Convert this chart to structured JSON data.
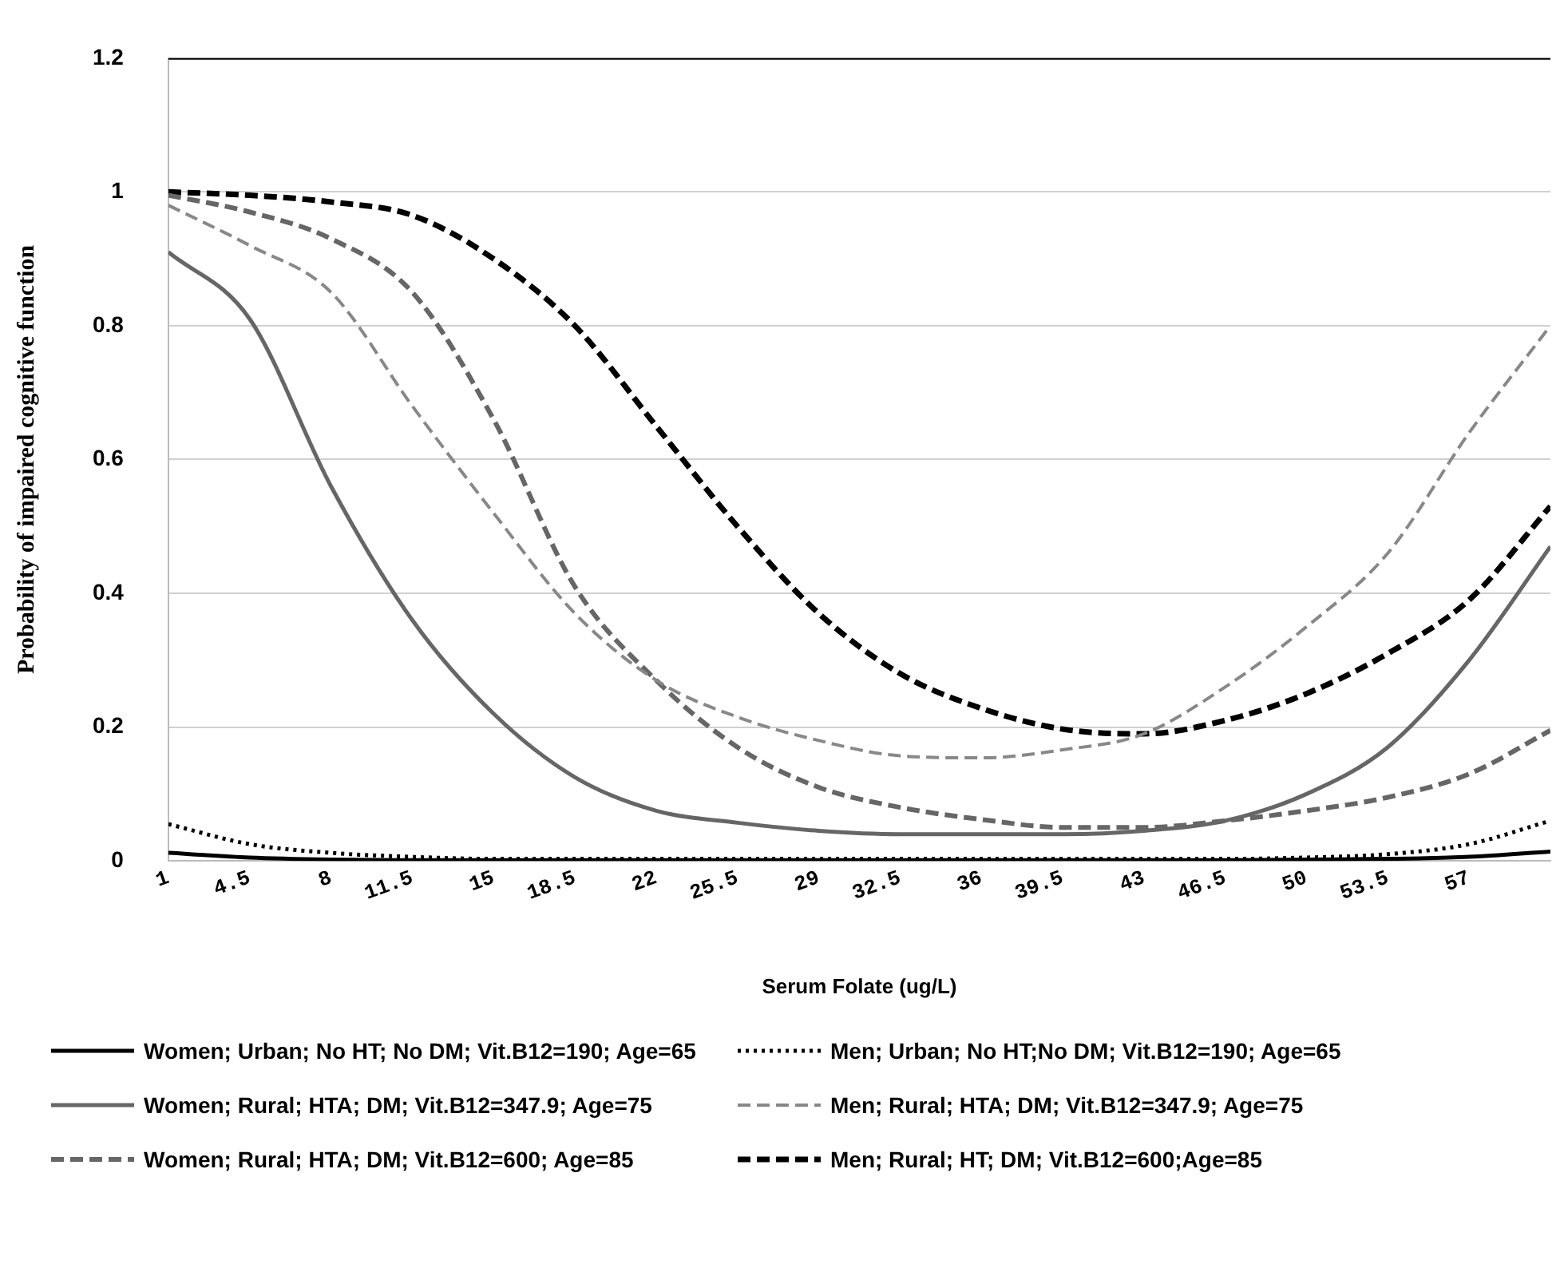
{
  "chart_data": {
    "type": "line",
    "xlabel": "Serum Folate (ug/L)",
    "ylabel": "Probability of impaired cognitive function",
    "x": [
      1,
      4.5,
      8,
      11.5,
      15,
      18.5,
      22,
      25.5,
      29,
      32.5,
      36,
      39.5,
      43,
      46.5,
      50,
      53.5,
      57,
      60.5
    ],
    "series": [
      {
        "name": "Women; Urban; No HT; No DM; Vit.B12=190; Age=65",
        "color": "#000000",
        "line_style": "solid",
        "values": [
          0.012,
          0.005,
          0.002,
          0.001,
          0.001,
          0.001,
          0.001,
          0.001,
          0.001,
          0.001,
          0.001,
          0.001,
          0.001,
          0.001,
          0.002,
          0.003,
          0.006,
          0.014
        ]
      },
      {
        "name": "Men; Urban; No HT;No DM; Vit.B12=190; Age=65",
        "color": "#000000",
        "line_style": "dotted",
        "values": [
          0.055,
          0.025,
          0.012,
          0.006,
          0.003,
          0.003,
          0.003,
          0.003,
          0.003,
          0.003,
          0.003,
          0.003,
          0.003,
          0.003,
          0.005,
          0.01,
          0.025,
          0.06
        ]
      },
      {
        "name": "Women; Rural; HTA; DM; Vit.B12=347.9; Age=75",
        "color": "#666666",
        "line_style": "solid",
        "values": [
          0.91,
          0.81,
          0.56,
          0.36,
          0.22,
          0.125,
          0.075,
          0.057,
          0.045,
          0.04,
          0.04,
          0.04,
          0.045,
          0.06,
          0.1,
          0.17,
          0.3,
          0.47
        ]
      },
      {
        "name": "Men; Rural; HTA; DM; Vit.B12=347.9; Age=75",
        "color": "#888888",
        "line_style": "dashed",
        "values": [
          0.98,
          0.92,
          0.85,
          0.68,
          0.52,
          0.37,
          0.27,
          0.215,
          0.18,
          0.157,
          0.154,
          0.166,
          0.19,
          0.26,
          0.35,
          0.46,
          0.64,
          0.8
        ]
      },
      {
        "name": "Women; Rural; HTA; DM; Vit.B12=600; Age=85",
        "color": "#666666",
        "line_style": "dashed",
        "values": [
          0.995,
          0.97,
          0.93,
          0.85,
          0.66,
          0.41,
          0.27,
          0.17,
          0.11,
          0.08,
          0.062,
          0.05,
          0.05,
          0.06,
          0.075,
          0.095,
          0.13,
          0.195
        ]
      },
      {
        "name": "Men; Rural; HT; DM; Vit.B12=600;Age=85",
        "color": "#000000",
        "line_style": "dashed",
        "values": [
          1.0,
          0.995,
          0.985,
          0.965,
          0.9,
          0.8,
          0.65,
          0.5,
          0.37,
          0.28,
          0.228,
          0.197,
          0.19,
          0.21,
          0.25,
          0.31,
          0.39,
          0.53
        ]
      }
    ],
    "xlim": [
      1,
      60.5
    ],
    "xticks": [
      1,
      4.5,
      8,
      11.5,
      15,
      18.5,
      22,
      25.5,
      29,
      32.5,
      36,
      39.5,
      43,
      46.5,
      50,
      53.5,
      57
    ],
    "ylim": [
      0,
      1.2
    ],
    "yticks": [
      0,
      0.2,
      0.4,
      0.6,
      0.8,
      1,
      1.2
    ],
    "grid": "y",
    "legend": "bottom",
    "marker": "none"
  }
}
